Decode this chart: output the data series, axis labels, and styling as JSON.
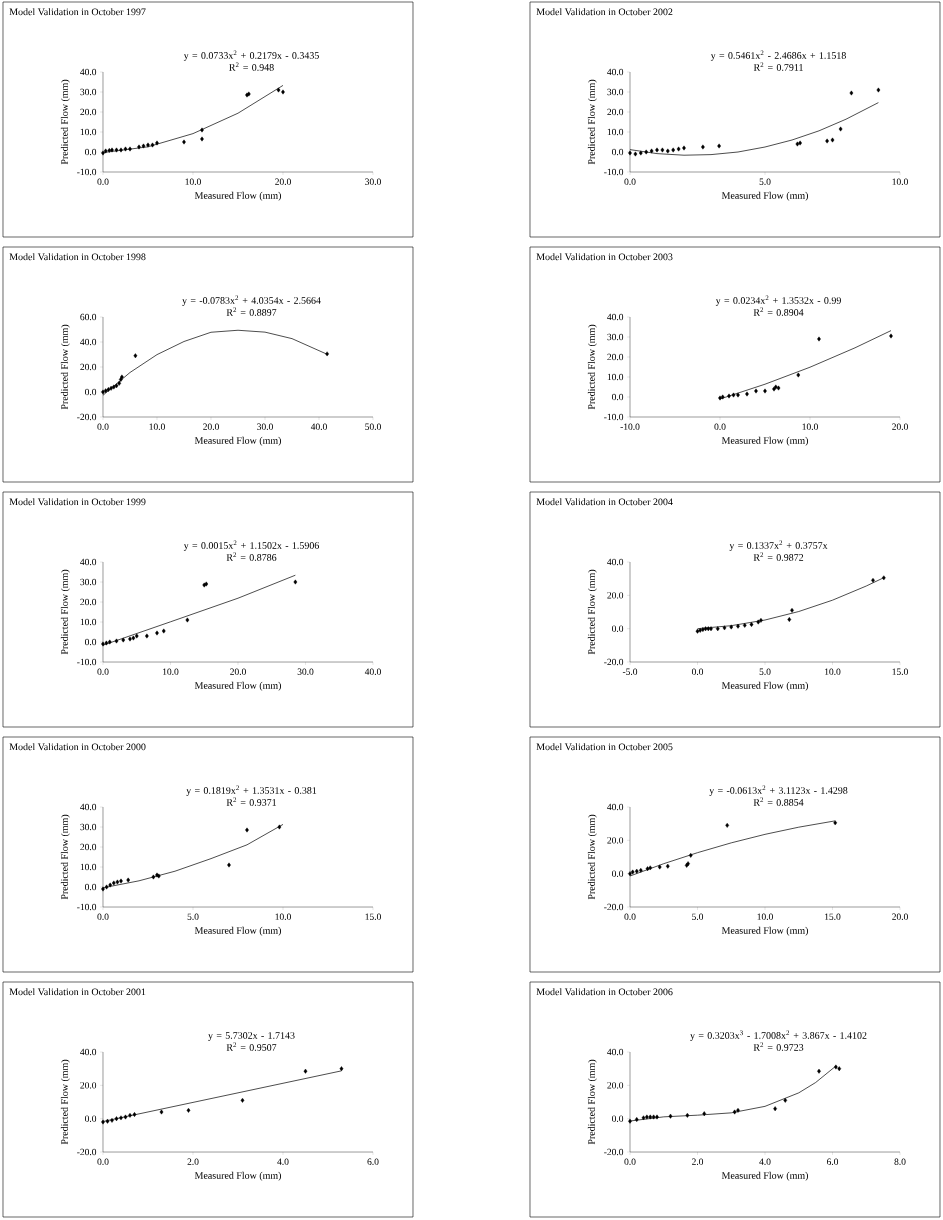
{
  "chart_data": [
    {
      "type": "scatter",
      "title": "Model Validation in October 1997",
      "xlabel": "Measured Flow (mm)",
      "ylabel": "Predicted Flow (mm)",
      "annotations": [
        "y = 0.0733x$^{2}$ + 0.2179x - 0.3435",
        "R$^{2}$ = 0.948"
      ],
      "xlim": [
        0,
        30
      ],
      "ylim": [
        -10,
        40
      ],
      "xticks": [
        {
          "value": 0,
          "label": "0.0"
        },
        {
          "value": 10,
          "label": "10.0"
        },
        {
          "value": 20,
          "label": "20.0"
        },
        {
          "value": 30,
          "label": "30.0"
        }
      ],
      "yticks": [
        {
          "value": -10,
          "label": "-10.0"
        },
        {
          "value": 0,
          "label": "0.0"
        },
        {
          "value": 10,
          "label": "10.0"
        },
        {
          "value": 20,
          "label": "20.0"
        },
        {
          "value": 30,
          "label": "30.0"
        },
        {
          "value": 40,
          "label": "40.0"
        }
      ],
      "series": [
        {
          "type": "scatter",
          "color": "#000000",
          "marker": "diamond",
          "x": [
            0,
            0.3,
            0.7,
            1,
            1.5,
            2,
            2.5,
            3,
            4,
            4.5,
            5,
            5.5,
            6,
            9,
            11,
            11,
            16,
            16.2,
            19.5,
            20
          ],
          "values": [
            -0.5,
            0.5,
            0.8,
            1,
            1,
            1,
            1.5,
            1.5,
            2.5,
            3,
            3.5,
            3.5,
            4.5,
            5,
            6.5,
            11,
            28.5,
            29,
            31,
            30
          ]
        },
        {
          "type": "line",
          "color": "#000000",
          "marker": "none",
          "x": [
            0,
            5,
            10,
            15,
            20
          ],
          "values": [
            -0.3,
            2.6,
            9.2,
            19.4,
            33.3
          ]
        }
      ]
    },
    {
      "type": "scatter",
      "title": "Model Validation in October 2002",
      "xlabel": "Measured Flow (mm)",
      "ylabel": "Predicted Flow (mm)",
      "annotations": [
        "y = 0.5461x$^{2}$ - 2.4686x + 1.1518",
        "R$^{2}$ = 0.7911"
      ],
      "xlim": [
        0,
        10
      ],
      "ylim": [
        -10,
        40
      ],
      "xticks": [
        {
          "value": 0,
          "label": "0.0"
        },
        {
          "value": 5,
          "label": "5.0"
        },
        {
          "value": 10,
          "label": "10.0"
        }
      ],
      "yticks": [
        {
          "value": -10,
          "label": "-10.0"
        },
        {
          "value": 0,
          "label": "0.0"
        },
        {
          "value": 10,
          "label": "10.0"
        },
        {
          "value": 20,
          "label": "20.0"
        },
        {
          "value": 30,
          "label": "30.0"
        },
        {
          "value": 40,
          "label": "40.0"
        }
      ],
      "series": [
        {
          "type": "scatter",
          "color": "#000000",
          "marker": "diamond",
          "x": [
            0,
            0.2,
            0.4,
            0.6,
            0.8,
            1,
            1.2,
            1.4,
            1.6,
            1.8,
            2,
            2.7,
            3.3,
            6.2,
            6.3,
            7.3,
            7.5,
            7.8,
            8.2,
            9.2
          ],
          "values": [
            -0.5,
            -1,
            -0.5,
            0,
            0.5,
            1,
            1,
            0.5,
            1,
            1.5,
            2,
            2.5,
            3,
            4,
            4.5,
            5.5,
            6,
            11.5,
            29.5,
            31
          ]
        },
        {
          "type": "line",
          "color": "#000000",
          "marker": "none",
          "x": [
            0,
            1,
            2,
            3,
            4,
            5,
            6,
            7,
            8,
            9.2
          ],
          "values": [
            1.2,
            -0.8,
            -1.6,
            -1.3,
            0,
            2.5,
            6,
            10.6,
            16.4,
            24.7
          ]
        }
      ]
    },
    {
      "type": "scatter",
      "title": "Model Validation in October 1998",
      "xlabel": "Measured Flow (mm)",
      "ylabel": "Predicted Flow (mm)",
      "annotations": [
        "y = -0.0783x$^{2}$ + 4.0354x - 2.5664",
        "R$^{2}$ = 0.8897"
      ],
      "xlim": [
        0,
        50
      ],
      "ylim": [
        -20,
        60
      ],
      "xticks": [
        {
          "value": 0,
          "label": "0.0"
        },
        {
          "value": 10,
          "label": "10.0"
        },
        {
          "value": 20,
          "label": "20.0"
        },
        {
          "value": 30,
          "label": "30.0"
        },
        {
          "value": 40,
          "label": "40.0"
        },
        {
          "value": 50,
          "label": "50.0"
        }
      ],
      "yticks": [
        {
          "value": -20,
          "label": "-20.0"
        },
        {
          "value": 0,
          "label": "0.0"
        },
        {
          "value": 20,
          "label": "20.0"
        },
        {
          "value": 40,
          "label": "40.0"
        },
        {
          "value": 60,
          "label": "60.0"
        }
      ],
      "series": [
        {
          "type": "scatter",
          "color": "#000000",
          "marker": "diamond",
          "x": [
            0,
            0.5,
            1,
            1.5,
            2,
            2.5,
            3,
            3.3,
            3.5,
            6,
            41.5
          ],
          "values": [
            0,
            1,
            2,
            3,
            4,
            5,
            7,
            10,
            12,
            29,
            30.5
          ]
        },
        {
          "type": "line",
          "color": "#000000",
          "marker": "none",
          "x": [
            0,
            5,
            10,
            15,
            20,
            25,
            30,
            35,
            41.5
          ],
          "values": [
            -2.6,
            15.6,
            29.9,
            40.4,
            47.8,
            49.4,
            47.9,
            42.7,
            30.2
          ]
        }
      ]
    },
    {
      "type": "scatter",
      "title": "Model Validation in October 2003",
      "xlabel": "Measured Flow (mm)",
      "ylabel": "Predicted Flow (mm)",
      "annotations": [
        "y = 0.0234x$^{2}$ + 1.3532x - 0.99",
        "R$^{2}$ = 0.8904"
      ],
      "xlim": [
        -10,
        20
      ],
      "ylim": [
        -10,
        40
      ],
      "xticks": [
        {
          "value": -10,
          "label": "-10.0"
        },
        {
          "value": 0,
          "label": "0.0"
        },
        {
          "value": 10,
          "label": "10.0"
        },
        {
          "value": 20,
          "label": "20.0"
        }
      ],
      "yticks": [
        {
          "value": -10,
          "label": "-10.0"
        },
        {
          "value": 0,
          "label": "0.0"
        },
        {
          "value": 10,
          "label": "10.0"
        },
        {
          "value": 20,
          "label": "20.0"
        },
        {
          "value": 30,
          "label": "30.0"
        },
        {
          "value": 40,
          "label": "40.0"
        }
      ],
      "series": [
        {
          "type": "scatter",
          "color": "#000000",
          "marker": "diamond",
          "x": [
            0,
            0.3,
            1,
            1.5,
            2,
            3,
            4,
            5,
            6,
            6.2,
            6.5,
            8.7,
            11,
            19
          ],
          "values": [
            -0.5,
            0,
            0.5,
            1,
            1,
            1.5,
            3,
            3,
            4,
            5,
            4.5,
            11,
            29,
            30.5
          ]
        },
        {
          "type": "line",
          "color": "#000000",
          "marker": "none",
          "x": [
            0,
            5,
            10,
            15,
            19
          ],
          "values": [
            -1,
            6.4,
            14.9,
            24.6,
            33.2
          ]
        }
      ]
    },
    {
      "type": "scatter",
      "title": "Model Validation in October 1999",
      "xlabel": "Measured Flow (mm)",
      "ylabel": "Predicted Flow (mm)",
      "annotations": [
        "y = 0.0015x$^{2}$ + 1.1502x - 1.5906",
        "R$^{2}$ = 0.8786"
      ],
      "xlim": [
        0,
        40
      ],
      "ylim": [
        -10,
        40
      ],
      "xticks": [
        {
          "value": 0,
          "label": "0.0"
        },
        {
          "value": 10,
          "label": "10.0"
        },
        {
          "value": 20,
          "label": "20.0"
        },
        {
          "value": 30,
          "label": "30.0"
        },
        {
          "value": 40,
          "label": "40.0"
        }
      ],
      "yticks": [
        {
          "value": -10,
          "label": "-10.0"
        },
        {
          "value": 0,
          "label": "0.0"
        },
        {
          "value": 10,
          "label": "10.0"
        },
        {
          "value": 20,
          "label": "20.0"
        },
        {
          "value": 30,
          "label": "30.0"
        },
        {
          "value": 40,
          "label": "40.0"
        }
      ],
      "series": [
        {
          "type": "scatter",
          "color": "#000000",
          "marker": "diamond",
          "x": [
            0,
            0.5,
            1,
            2,
            3,
            4,
            4.5,
            5,
            6.5,
            8,
            9,
            12.5,
            15,
            15.3,
            28.5
          ],
          "values": [
            -1,
            -0.5,
            0,
            0.5,
            1,
            1.5,
            2,
            3,
            3,
            4.5,
            5.5,
            11,
            28.5,
            29,
            30
          ]
        },
        {
          "type": "line",
          "color": "#000000",
          "marker": "none",
          "x": [
            0,
            10,
            20,
            28.5
          ],
          "values": [
            -1.6,
            10.1,
            21.9,
            33.4
          ]
        }
      ]
    },
    {
      "type": "scatter",
      "title": "Model Validation in October 2004",
      "xlabel": "Measured Flow (mm)",
      "ylabel": "Predicted Flow (mm)",
      "annotations": [
        "y = 0.1337x$^{2}$ + 0.3757x",
        "R$^{2}$ = 0.9872"
      ],
      "xlim": [
        -5,
        15
      ],
      "ylim": [
        -20,
        40
      ],
      "xticks": [
        {
          "value": -5,
          "label": "-5.0"
        },
        {
          "value": 0,
          "label": "0.0"
        },
        {
          "value": 5,
          "label": "5.0"
        },
        {
          "value": 10,
          "label": "10.0"
        },
        {
          "value": 15,
          "label": "15.0"
        }
      ],
      "yticks": [
        {
          "value": -20,
          "label": "-20.0"
        },
        {
          "value": 0,
          "label": "0.0"
        },
        {
          "value": 20,
          "label": "20.0"
        },
        {
          "value": 40,
          "label": "40.0"
        }
      ],
      "series": [
        {
          "type": "scatter",
          "color": "#000000",
          "marker": "diamond",
          "x": [
            0,
            0.2,
            0.4,
            0.6,
            0.8,
            1,
            1.5,
            2,
            2.5,
            3,
            3.5,
            4,
            4.5,
            4.7,
            6.8,
            7,
            13,
            13.8
          ],
          "values": [
            -1.5,
            -1,
            -0.5,
            0,
            0,
            0,
            0,
            0.5,
            1,
            1.5,
            2,
            2.5,
            4,
            5,
            5.5,
            11,
            29,
            30.5
          ]
        },
        {
          "type": "line",
          "color": "#000000",
          "marker": "none",
          "x": [
            0,
            2.5,
            5,
            7.5,
            10,
            12.5,
            13.8
          ],
          "values": [
            0,
            1.8,
            5.2,
            10.3,
            17.1,
            25.6,
            30.6
          ]
        }
      ]
    },
    {
      "type": "scatter",
      "title": "Model Validation in October 2000",
      "xlabel": "Measured Flow (mm)",
      "ylabel": "Predicted Flow (mm)",
      "annotations": [
        "y = 0.1819x$^{2}$ + 1.3531x - 0.381",
        "R$^{2}$ = 0.9371"
      ],
      "xlim": [
        0,
        15
      ],
      "ylim": [
        -10,
        40
      ],
      "xticks": [
        {
          "value": 0,
          "label": "0.0"
        },
        {
          "value": 5,
          "label": "5.0"
        },
        {
          "value": 10,
          "label": "10.0"
        },
        {
          "value": 15,
          "label": "15.0"
        }
      ],
      "yticks": [
        {
          "value": -10,
          "label": "-10.0"
        },
        {
          "value": 0,
          "label": "0.0"
        },
        {
          "value": 10,
          "label": "10.0"
        },
        {
          "value": 20,
          "label": "20.0"
        },
        {
          "value": 30,
          "label": "30.0"
        },
        {
          "value": 40,
          "label": "40.0"
        }
      ],
      "series": [
        {
          "type": "scatter",
          "color": "#000000",
          "marker": "diamond",
          "x": [
            0,
            0.2,
            0.4,
            0.6,
            0.8,
            1,
            1.4,
            2.8,
            3,
            3.1,
            7,
            8,
            9.8
          ],
          "values": [
            -1,
            0,
            1,
            2,
            2.5,
            3,
            3.5,
            5,
            6,
            5.5,
            11,
            28.5,
            30
          ]
        },
        {
          "type": "line",
          "color": "#000000",
          "marker": "none",
          "x": [
            0,
            2,
            4,
            6,
            8,
            10
          ],
          "values": [
            -0.4,
            3.1,
            7.9,
            14.2,
            21.1,
            31.3
          ]
        }
      ]
    },
    {
      "type": "scatter",
      "title": "Model Validation in October 2005",
      "xlabel": "Measured Flow (mm)",
      "ylabel": "Predicted Flow (mm)",
      "annotations": [
        "y = -0.0613x$^{2}$ + 3.1123x - 1.4298",
        "R$^{2}$ = 0.8854"
      ],
      "xlim": [
        0,
        20
      ],
      "ylim": [
        -20,
        40
      ],
      "xticks": [
        {
          "value": 0,
          "label": "0.0"
        },
        {
          "value": 5,
          "label": "5.0"
        },
        {
          "value": 10,
          "label": "10.0"
        },
        {
          "value": 15,
          "label": "15.0"
        },
        {
          "value": 20,
          "label": "20.0"
        }
      ],
      "yticks": [
        {
          "value": -20,
          "label": "-20.0"
        },
        {
          "value": 0,
          "label": "0.0"
        },
        {
          "value": 20,
          "label": "20.0"
        },
        {
          "value": 40,
          "label": "40.0"
        }
      ],
      "series": [
        {
          "type": "scatter",
          "color": "#000000",
          "marker": "diamond",
          "x": [
            0,
            0.2,
            0.5,
            0.8,
            1.3,
            1.5,
            2.2,
            2.8,
            4.2,
            4.3,
            4.5,
            7.2,
            15.2
          ],
          "values": [
            0,
            1,
            1.5,
            2,
            3,
            3.5,
            4,
            4.5,
            5,
            6,
            11,
            29,
            30.5
          ]
        },
        {
          "type": "line",
          "color": "#000000",
          "marker": "none",
          "x": [
            0,
            2.5,
            5,
            7.5,
            10,
            12.5,
            15.2
          ],
          "values": [
            -1.4,
            6,
            12.6,
            18.5,
            23.6,
            27.9,
            31.7
          ]
        }
      ]
    },
    {
      "type": "scatter",
      "title": "Model Validation in October 2001",
      "xlabel": "Measured Flow (mm)",
      "ylabel": "Predicted Flow (mm)",
      "annotations": [
        "y = 5.7302x - 1.7143",
        "R$^{2}$ = 0.9507"
      ],
      "xlim": [
        0,
        6
      ],
      "ylim": [
        -20,
        40
      ],
      "xticks": [
        {
          "value": 0,
          "label": "0.0"
        },
        {
          "value": 2,
          "label": "2.0"
        },
        {
          "value": 4,
          "label": "4.0"
        },
        {
          "value": 6,
          "label": "6.0"
        }
      ],
      "yticks": [
        {
          "value": -20,
          "label": "-20.0"
        },
        {
          "value": 0,
          "label": "0.0"
        },
        {
          "value": 20,
          "label": "20.0"
        },
        {
          "value": 40,
          "label": "40.0"
        }
      ],
      "series": [
        {
          "type": "scatter",
          "color": "#000000",
          "marker": "diamond",
          "x": [
            0,
            0.1,
            0.2,
            0.3,
            0.4,
            0.5,
            0.6,
            0.7,
            1.3,
            1.9,
            3.1,
            4.5,
            5.3
          ],
          "values": [
            -2,
            -1.5,
            -1,
            0,
            0.5,
            1,
            2,
            2.5,
            4,
            5,
            11,
            28.5,
            30
          ]
        },
        {
          "type": "line",
          "color": "#000000",
          "marker": "none",
          "x": [
            0,
            5.3
          ],
          "values": [
            -1.7,
            28.7
          ]
        }
      ]
    },
    {
      "type": "scatter",
      "title": "Model Validation in October 2006",
      "xlabel": "Measured Flow (mm)",
      "ylabel": "Predicted Flow (mm)",
      "annotations": [
        "y = 0.3203x$^{3}$ - 1.7008x$^{2}$ + 3.867x - 1.4102",
        "R$^{2}$ = 0.9723"
      ],
      "xlim": [
        0,
        8
      ],
      "ylim": [
        -20,
        40
      ],
      "xticks": [
        {
          "value": 0,
          "label": "0.0"
        },
        {
          "value": 2,
          "label": "2.0"
        },
        {
          "value": 4,
          "label": "4.0"
        },
        {
          "value": 6,
          "label": "6.0"
        },
        {
          "value": 8,
          "label": "8.0"
        }
      ],
      "yticks": [
        {
          "value": -20,
          "label": "-20.0"
        },
        {
          "value": 0,
          "label": "0.0"
        },
        {
          "value": 20,
          "label": "20.0"
        },
        {
          "value": 40,
          "label": "40.0"
        }
      ],
      "series": [
        {
          "type": "scatter",
          "color": "#000000",
          "marker": "diamond",
          "x": [
            0,
            0.2,
            0.4,
            0.5,
            0.6,
            0.7,
            0.8,
            1.2,
            1.7,
            2.2,
            3.1,
            3.2,
            4.3,
            4.6,
            5.6,
            6.1,
            6.2
          ],
          "values": [
            -1.5,
            -0.5,
            0.5,
            1,
            1,
            1,
            1,
            1.5,
            2,
            3,
            4,
            5,
            6,
            11,
            28.5,
            31,
            30
          ]
        },
        {
          "type": "line",
          "color": "#000000",
          "marker": "none",
          "x": [
            0,
            1,
            2,
            3,
            4,
            5,
            5.5,
            6.1
          ],
          "values": [
            -1.4,
            1.1,
            2.1,
            3.5,
            7.4,
            15.5,
            21.7,
            31.6
          ]
        }
      ]
    }
  ]
}
